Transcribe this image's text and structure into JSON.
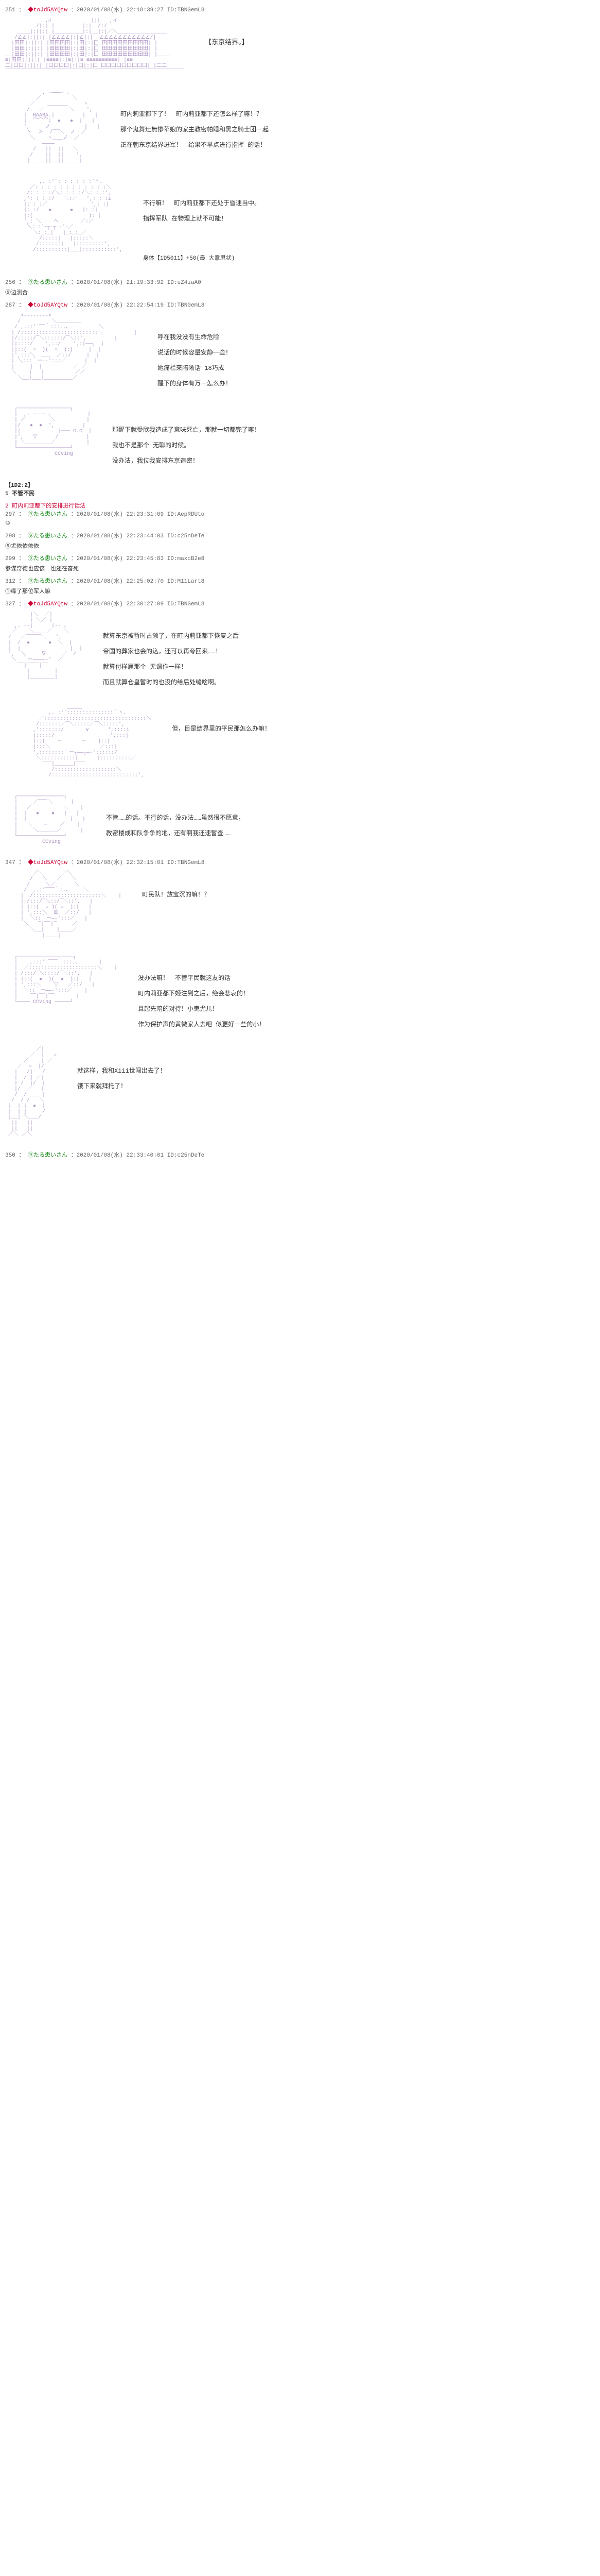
{
  "posts": [
    {
      "num": "251",
      "name_red": "◆toJd5AYQtw",
      "meta": "：2020/01/08(水) 22:18:39:27 ID:TBNGemL8",
      "aa_type": "cityscape",
      "caption": "【东京结界。】",
      "text_lines": []
    },
    {
      "num": "",
      "aa_type": "chara1",
      "text_lines": [
        "町内莉亚都下了！　町内莉亚都下还怎么样了嘛！？",
        "那个鬼舞辻無惨苹娘的家主教密帕睡和黑之骑士团一起",
        "正在朝东京结界进军！　给果不早点进行指挥 的话！"
      ]
    },
    {
      "num": "",
      "aa_type": "chara2",
      "text_lines": [
        "不行嘛！　町内莉亚都下还处于昏迷当中。",
        "指挥军队 在物理上就不可能！"
      ],
      "extra": "身体【1D5011】+50(最 大意思状)"
    },
    {
      "num": "256",
      "name_green": "⑨たる患いさん",
      "meta": "：2020/01/08(水) 21:19:33:92 ID:uZ4iaA0",
      "text_lines": [
        "⑨边测合"
      ]
    },
    {
      "num": "287",
      "name_red": "◆toJd5AYQtw",
      "meta": "：2020/01/08(水) 22:22:54:19 ID:TBNGemL8",
      "aa_type": "chara3",
      "text_lines": [
        "呼在我没没有生命危险",
        "说话的时候容量安静一些！",
        "她痛栏来陪晰话 18巧成",
        "醒下的身体有万一怎么办！"
      ]
    },
    {
      "num": "",
      "aa_type": "chara4",
      "text_lines": [
        "那醒下就受欣我造成了意味死亡，那就一切都完了嘛！",
        "我也不是那个 无聊的时候。",
        "没办法，我位我安排东京造密！"
      ],
      "extra_dice": "【1D2:2】\n1 不管不民"
    },
    {
      "num": "297",
      "name_green": "⑨たる患いさん",
      "name_red_part": "2 町内莉亚都下的安排进行话法",
      "meta": "：2020/01/08(水) 22:23:31:09 ID:AepRDUto",
      "text_lines": [
        "⑩"
      ]
    },
    {
      "num": "298",
      "name_green": "⑨たる患いさん",
      "meta": "：2020/01/08(水) 22:23:44:03 ID:c25nDeTe",
      "text_lines": [
        "⑨尤依依依依"
      ]
    },
    {
      "num": "299",
      "name_green": "⑨たる患いさん",
      "meta": "：2020/01/08(水) 22:23:45:83 ID:maxcB2e8",
      "text_lines": [
        "参谋奇德也应该　也还在奋死"
      ]
    },
    {
      "num": "312",
      "name_green": "⑨たる患いさん",
      "meta": "：2020/01/08(水) 22:25:02:70 ID:M11Lart8",
      "text_lines": [
        "①缘了那位军人嘛"
      ]
    },
    {
      "num": "327",
      "name_red": "◆toJd5AYQtw",
      "meta": "：2020/01/08(水) 22:30:27:09 ID:TBNGemL8",
      "aa_type": "chara5",
      "text_lines": [
        "就算东京被暂时占领了，在町内莉亚都下恢复之后",
        "帝国的葬家也会的込，还可以再夸回来……！",
        "就算付样届那个 无谓作一样！",
        "而且就算仓皇暂时的也没的给后处缝啥啊。"
      ]
    },
    {
      "num": "",
      "aa_type": "chara6",
      "text_lines": [
        "但，目是结界里的平民那怎么办嘛！"
      ]
    },
    {
      "num": "",
      "aa_type": "chara7",
      "text_lines": [
        "不管……的话。不行的话，没办法……虽然很不愿意，",
        "教密楼成和队争争的地，还有啊我还速暂查……"
      ]
    },
    {
      "num": "347",
      "name_red": "◆toJd5AYQtw",
      "meta": "：2020/01/08(水) 22:32:15:01 ID:TBNGemL8",
      "aa_type": "chara8",
      "text_lines": [
        "町民队！放宝沉的嘛！？"
      ]
    },
    {
      "num": "",
      "aa_type": "chara9",
      "text_lines": [
        "没办法嘛！　不管平民就这友的话",
        "町内莉亚都下姬注到之后，绝会悲哀的！",
        "且起先暗的对待！小鬼尤儿！",
        "作为保护声的黄微家人去吧 似更好一些的小！"
      ]
    },
    {
      "num": "",
      "aa_type": "chara10",
      "text_lines": [
        "就这样，我和Xiii世闯出去了！",
        "饿下来就拜托了！"
      ]
    },
    {
      "num": "350",
      "name_green": "⑨たる患いさん",
      "meta": "：2020/01/08(水) 22:33:40:01 ID:c25nDeTe"
    }
  ],
  "colors": {
    "bg": "#ffffff",
    "aa": "#9977aa",
    "text": "#333333",
    "red": "#cc0033",
    "green": "#228b22",
    "gray": "#666666"
  }
}
